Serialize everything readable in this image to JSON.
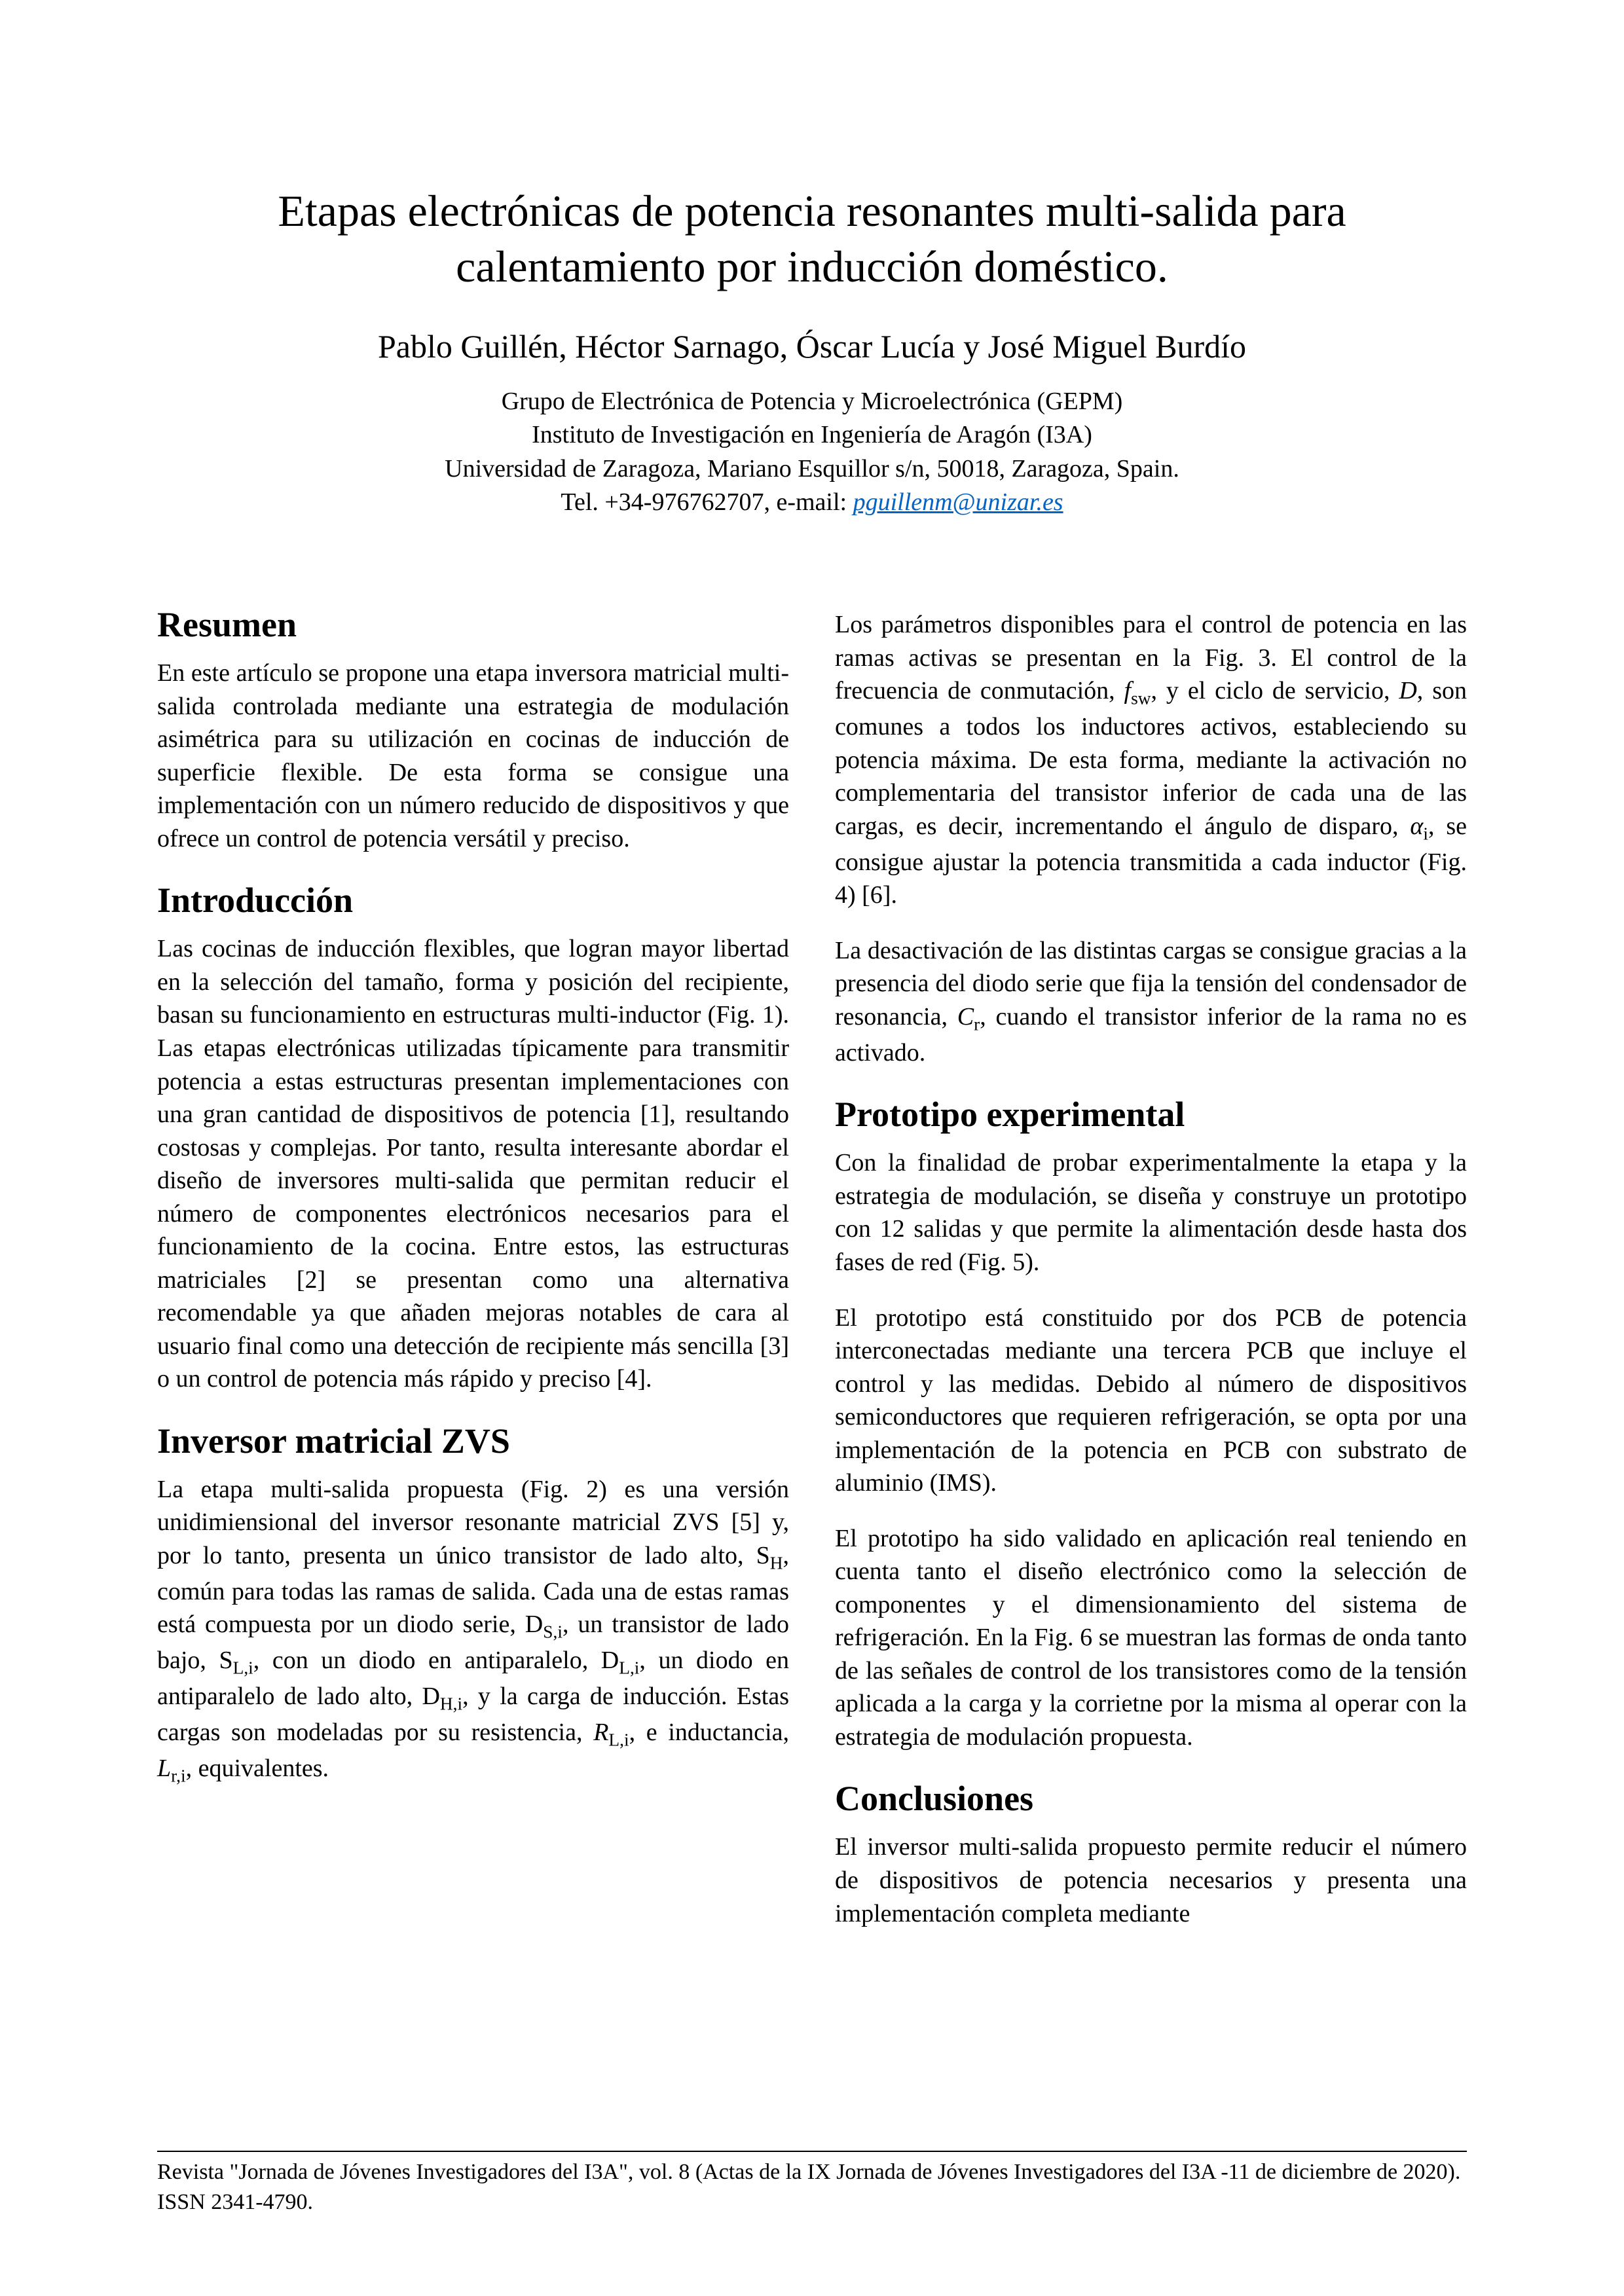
{
  "title": "Etapas electrónicas de potencia resonantes multi-salida para calentamiento por inducción doméstico.",
  "authors": "Pablo Guillén, Héctor Sarnago, Óscar Lucía y José Miguel Burdío",
  "affil_line1": "Grupo de Electrónica de Potencia y Microelectrónica (GEPM)",
  "affil_line2": "Instituto de Investigación en Ingeniería de Aragón (I3A)",
  "affil_line3": "Universidad de Zaragoza, Mariano Esquillor s/n, 50018, Zaragoza, Spain.",
  "affil_tel_prefix": "Tel. +34-976762707, e-mail: ",
  "affil_email": "pguillenm@unizar.es",
  "sec_resumen": "Resumen",
  "resumen_p1": "En este artículo se propone una etapa inversora matricial multi-salida controlada mediante una estrategia de modulación asimétrica para su utilización en cocinas de inducción de superficie flexible. De esta forma se consigue una implementación con un número reducido de dispositivos y que ofrece un control de potencia versátil y preciso.",
  "sec_intro": "Introducción",
  "intro_p1": "Las cocinas de inducción flexibles, que logran mayor libertad en la selección del tamaño, forma y posición del recipiente, basan su funcionamiento en estructuras multi-inductor (Fig. 1). Las etapas electrónicas utilizadas típicamente para transmitir potencia a estas estructuras presentan implementaciones con una gran cantidad de dispositivos de potencia [1], resultando costosas y complejas. Por tanto, resulta interesante abordar el diseño de inversores multi-salida que permitan reducir el número de componentes electrónicos necesarios para el funcionamiento de la cocina. Entre estos, las estructuras matriciales [2] se presentan como una alternativa recomendable ya que añaden mejoras notables de cara al usuario final como una detección de recipiente más sencilla [3] o un control de potencia más rápido y preciso [4].",
  "sec_inv": "Inversor matricial ZVS",
  "inv_p1_html": "La etapa multi-salida propuesta (Fig. 2) es una versión unidimiensional del inversor resonante matricial ZVS [5] y, por lo tanto, presenta un único transistor de lado alto, S<sub>H</sub>, común para todas las ramas de salida. Cada una de estas ramas está compuesta por un diodo serie, D<sub>S,i</sub>, un transistor de lado bajo, S<sub>L,i</sub>, con un diodo en antiparalelo, D<sub>L,i</sub>, un diodo en antiparalelo de lado alto, D<sub>H,i</sub>, y la carga de inducción. Estas cargas son modeladas por su resistencia, <span class=\"ital\">R</span><sub>L,i</sub>, e inductancia, <span class=\"ital\">L</span><sub>r,i</sub>, equivalentes.",
  "col2_p1_html": "Los parámetros disponibles para el control de potencia en las ramas activas se presentan en la Fig. 3. El control de la frecuencia de conmutación, <span class=\"ital\">f</span><sub>sw</sub>, y el ciclo de servicio, <span class=\"ital\">D</span>, son comunes a todos los inductores activos, estableciendo su potencia máxima. De esta forma, mediante la activación no complementaria del transistor inferior de cada una de las cargas, es decir, incrementando el ángulo de disparo, <span class=\"ital\">α</span><sub>i</sub>, se consigue ajustar la potencia transmitida a cada inductor (Fig. 4) [6].",
  "col2_p2_html": "La desactivación de las distintas cargas se consigue gracias a la presencia del diodo serie que fija la tensión del condensador de resonancia, <span class=\"ital\">C</span><sub>r</sub>, cuando el transistor inferior de la rama no es activado.",
  "sec_proto": "Prototipo experimental",
  "proto_p1": "Con la finalidad de probar experimentalmente la etapa y la estrategia de modulación, se diseña y construye un prototipo con 12 salidas y que permite la alimentación desde hasta dos fases de red (Fig. 5).",
  "proto_p2": "El prototipo está constituido por dos PCB de potencia interconectadas mediante una tercera PCB que incluye el control y las medidas. Debido al número de dispositivos semiconductores que requieren refrigeración, se opta por una implementación de la potencia en PCB con substrato de aluminio (IMS).",
  "proto_p3": "El prototipo ha sido validado en aplicación real teniendo en cuenta tanto el diseño electrónico como la selección de componentes y el dimensionamiento del sistema de refrigeración. En la Fig. 6 se muestran las formas de onda tanto de las señales de control de los transistores como de la tensión aplicada a la carga y la corrietne por la misma al operar con la estrategia de modulación propuesta.",
  "sec_conc": "Conclusiones",
  "conc_p1": "El inversor multi-salida propuesto permite reducir el número de dispositivos de potencia necesarios y presenta una implementación completa mediante",
  "footer": "Revista \"Jornada de Jóvenes Investigadores del I3A\", vol. 8 (Actas de la IX Jornada de Jóvenes Investigadores del I3A -11 de diciembre de 2020). ISSN 2341-4790."
}
